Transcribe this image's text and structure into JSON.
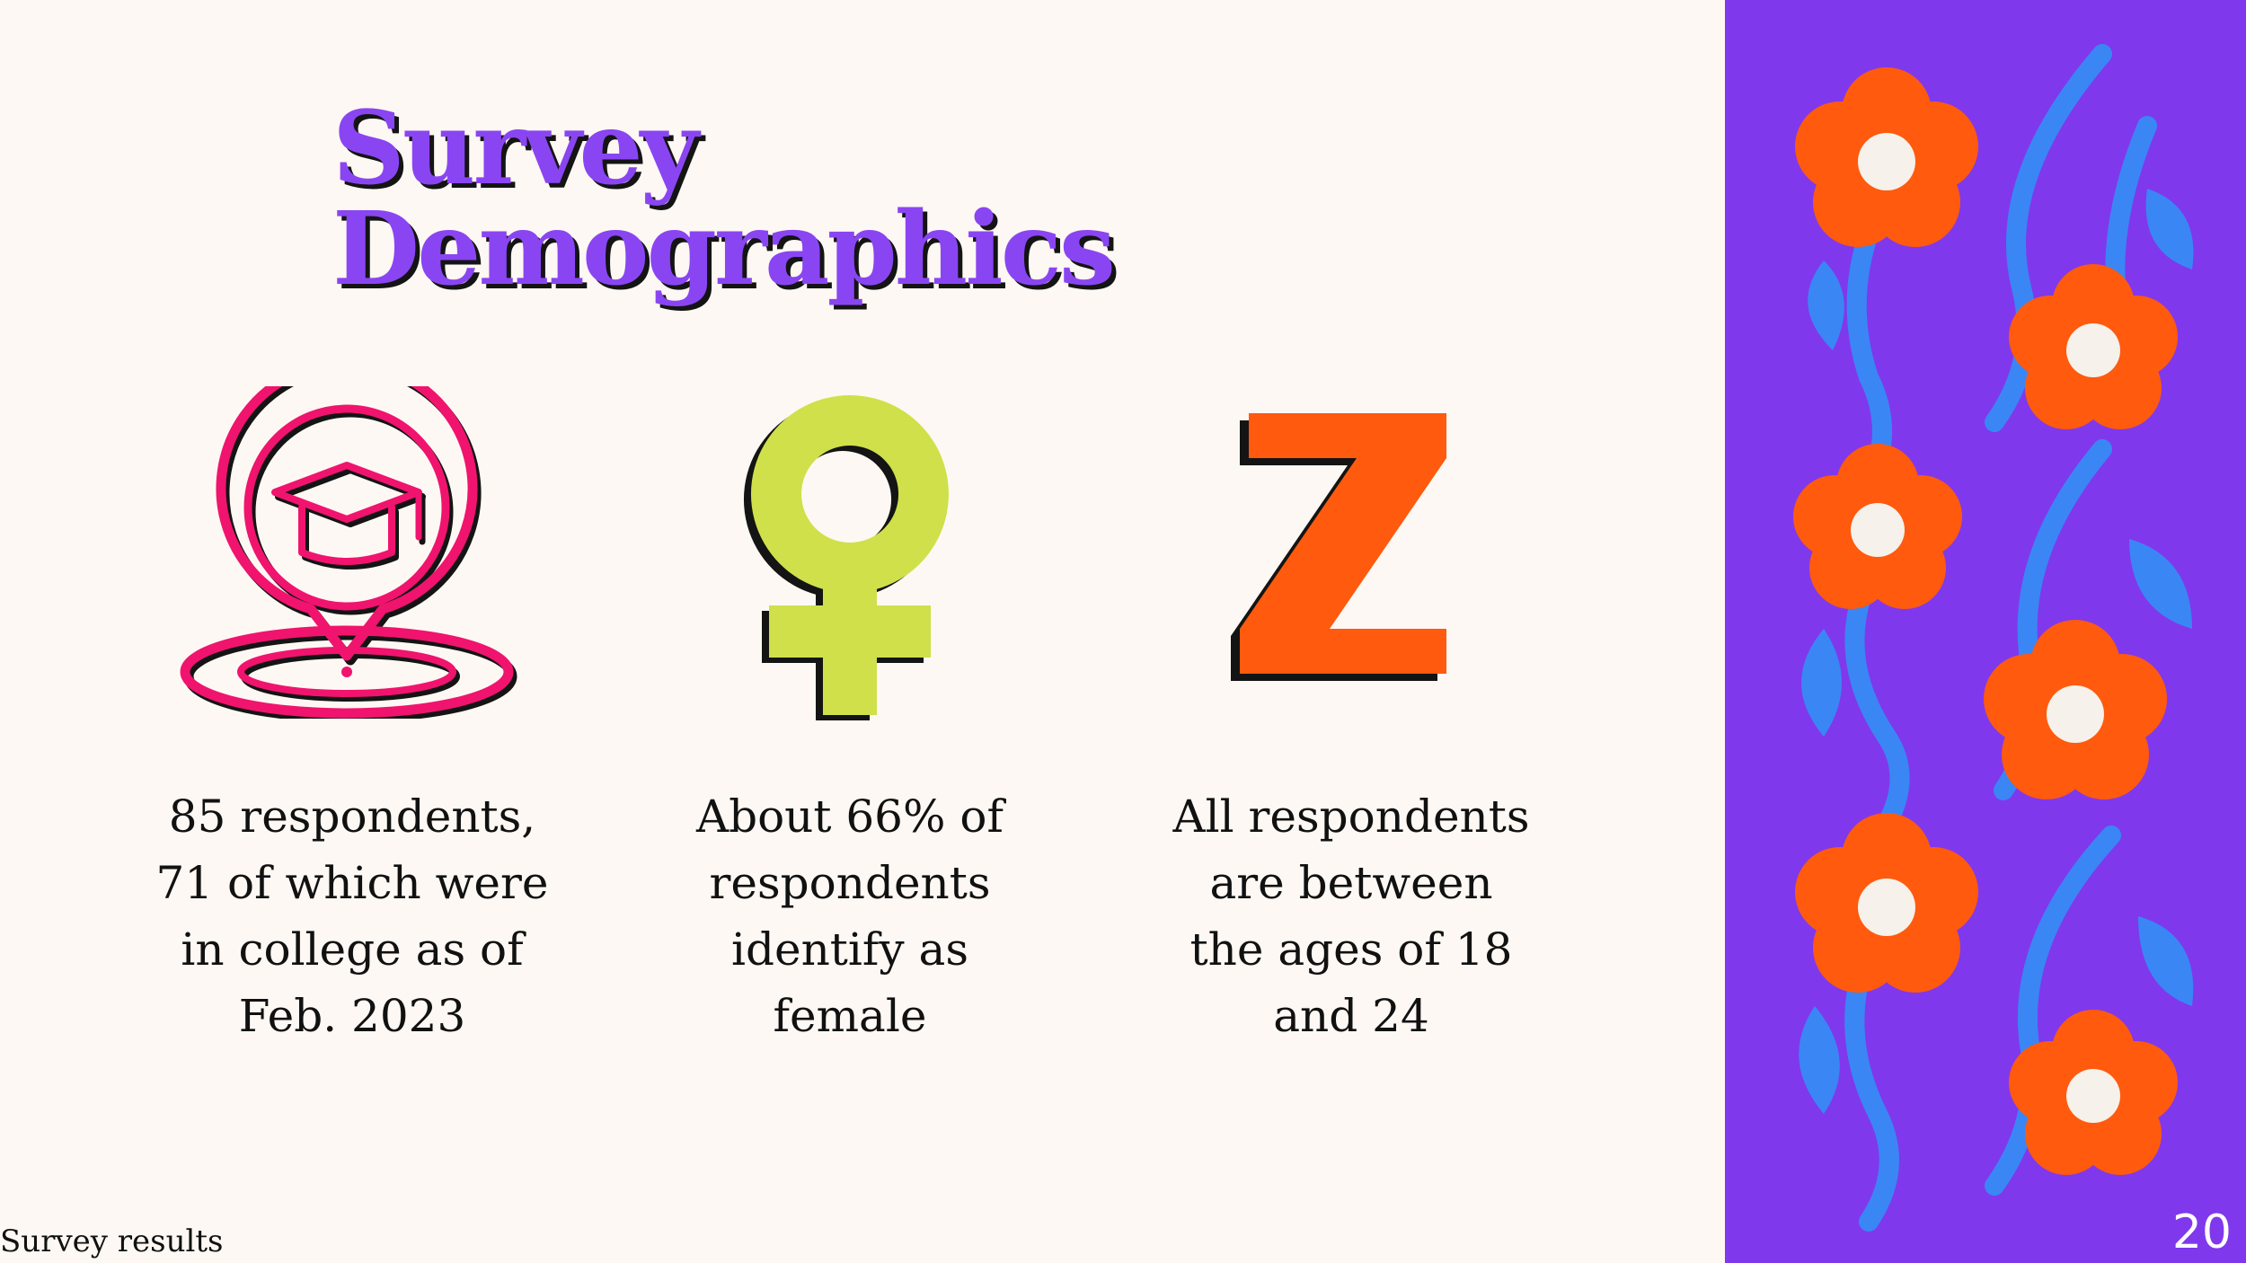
{
  "slide": {
    "title": "Survey Demographics",
    "footer_left": "Survey results",
    "page_number": "20"
  },
  "stats": [
    {
      "icon": "graduation-location-icon",
      "lines": [
        "85 respondents,",
        "71 of which were",
        "in college as of",
        "Feb. 2023"
      ]
    },
    {
      "icon": "female-symbol-icon",
      "lines": [
        "About 66% of",
        "respondents",
        "identify as",
        "female"
      ]
    },
    {
      "icon": "letter-z-icon",
      "glyph": "Z",
      "lines": [
        "All respondents",
        "are between",
        "the ages of 18",
        "and 24"
      ]
    }
  ],
  "colors": {
    "background": "#fdf8f3",
    "title": "#8a45f2",
    "panel": "#8038ec",
    "pink": "#f0146e",
    "lime": "#cfe04a",
    "orange": "#ff5a0e",
    "blue": "#3a86f5",
    "shadow": "#141414"
  }
}
